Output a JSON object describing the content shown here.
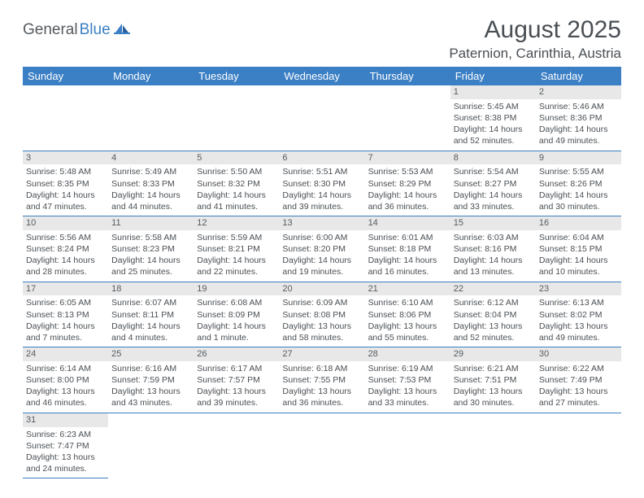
{
  "logo": {
    "part1": "General",
    "part2": "Blue"
  },
  "title": "August 2025",
  "location": "Paternion, Carinthia, Austria",
  "header_bg": "#3b7fc4",
  "weekdays": [
    "Sunday",
    "Monday",
    "Tuesday",
    "Wednesday",
    "Thursday",
    "Friday",
    "Saturday"
  ],
  "weeks": [
    [
      null,
      null,
      null,
      null,
      null,
      {
        "n": "1",
        "sr": "Sunrise: 5:45 AM",
        "ss": "Sunset: 8:38 PM",
        "dl": "Daylight: 14 hours and 52 minutes."
      },
      {
        "n": "2",
        "sr": "Sunrise: 5:46 AM",
        "ss": "Sunset: 8:36 PM",
        "dl": "Daylight: 14 hours and 49 minutes."
      }
    ],
    [
      {
        "n": "3",
        "sr": "Sunrise: 5:48 AM",
        "ss": "Sunset: 8:35 PM",
        "dl": "Daylight: 14 hours and 47 minutes."
      },
      {
        "n": "4",
        "sr": "Sunrise: 5:49 AM",
        "ss": "Sunset: 8:33 PM",
        "dl": "Daylight: 14 hours and 44 minutes."
      },
      {
        "n": "5",
        "sr": "Sunrise: 5:50 AM",
        "ss": "Sunset: 8:32 PM",
        "dl": "Daylight: 14 hours and 41 minutes."
      },
      {
        "n": "6",
        "sr": "Sunrise: 5:51 AM",
        "ss": "Sunset: 8:30 PM",
        "dl": "Daylight: 14 hours and 39 minutes."
      },
      {
        "n": "7",
        "sr": "Sunrise: 5:53 AM",
        "ss": "Sunset: 8:29 PM",
        "dl": "Daylight: 14 hours and 36 minutes."
      },
      {
        "n": "8",
        "sr": "Sunrise: 5:54 AM",
        "ss": "Sunset: 8:27 PM",
        "dl": "Daylight: 14 hours and 33 minutes."
      },
      {
        "n": "9",
        "sr": "Sunrise: 5:55 AM",
        "ss": "Sunset: 8:26 PM",
        "dl": "Daylight: 14 hours and 30 minutes."
      }
    ],
    [
      {
        "n": "10",
        "sr": "Sunrise: 5:56 AM",
        "ss": "Sunset: 8:24 PM",
        "dl": "Daylight: 14 hours and 28 minutes."
      },
      {
        "n": "11",
        "sr": "Sunrise: 5:58 AM",
        "ss": "Sunset: 8:23 PM",
        "dl": "Daylight: 14 hours and 25 minutes."
      },
      {
        "n": "12",
        "sr": "Sunrise: 5:59 AM",
        "ss": "Sunset: 8:21 PM",
        "dl": "Daylight: 14 hours and 22 minutes."
      },
      {
        "n": "13",
        "sr": "Sunrise: 6:00 AM",
        "ss": "Sunset: 8:20 PM",
        "dl": "Daylight: 14 hours and 19 minutes."
      },
      {
        "n": "14",
        "sr": "Sunrise: 6:01 AM",
        "ss": "Sunset: 8:18 PM",
        "dl": "Daylight: 14 hours and 16 minutes."
      },
      {
        "n": "15",
        "sr": "Sunrise: 6:03 AM",
        "ss": "Sunset: 8:16 PM",
        "dl": "Daylight: 14 hours and 13 minutes."
      },
      {
        "n": "16",
        "sr": "Sunrise: 6:04 AM",
        "ss": "Sunset: 8:15 PM",
        "dl": "Daylight: 14 hours and 10 minutes."
      }
    ],
    [
      {
        "n": "17",
        "sr": "Sunrise: 6:05 AM",
        "ss": "Sunset: 8:13 PM",
        "dl": "Daylight: 14 hours and 7 minutes."
      },
      {
        "n": "18",
        "sr": "Sunrise: 6:07 AM",
        "ss": "Sunset: 8:11 PM",
        "dl": "Daylight: 14 hours and 4 minutes."
      },
      {
        "n": "19",
        "sr": "Sunrise: 6:08 AM",
        "ss": "Sunset: 8:09 PM",
        "dl": "Daylight: 14 hours and 1 minute."
      },
      {
        "n": "20",
        "sr": "Sunrise: 6:09 AM",
        "ss": "Sunset: 8:08 PM",
        "dl": "Daylight: 13 hours and 58 minutes."
      },
      {
        "n": "21",
        "sr": "Sunrise: 6:10 AM",
        "ss": "Sunset: 8:06 PM",
        "dl": "Daylight: 13 hours and 55 minutes."
      },
      {
        "n": "22",
        "sr": "Sunrise: 6:12 AM",
        "ss": "Sunset: 8:04 PM",
        "dl": "Daylight: 13 hours and 52 minutes."
      },
      {
        "n": "23",
        "sr": "Sunrise: 6:13 AM",
        "ss": "Sunset: 8:02 PM",
        "dl": "Daylight: 13 hours and 49 minutes."
      }
    ],
    [
      {
        "n": "24",
        "sr": "Sunrise: 6:14 AM",
        "ss": "Sunset: 8:00 PM",
        "dl": "Daylight: 13 hours and 46 minutes."
      },
      {
        "n": "25",
        "sr": "Sunrise: 6:16 AM",
        "ss": "Sunset: 7:59 PM",
        "dl": "Daylight: 13 hours and 43 minutes."
      },
      {
        "n": "26",
        "sr": "Sunrise: 6:17 AM",
        "ss": "Sunset: 7:57 PM",
        "dl": "Daylight: 13 hours and 39 minutes."
      },
      {
        "n": "27",
        "sr": "Sunrise: 6:18 AM",
        "ss": "Sunset: 7:55 PM",
        "dl": "Daylight: 13 hours and 36 minutes."
      },
      {
        "n": "28",
        "sr": "Sunrise: 6:19 AM",
        "ss": "Sunset: 7:53 PM",
        "dl": "Daylight: 13 hours and 33 minutes."
      },
      {
        "n": "29",
        "sr": "Sunrise: 6:21 AM",
        "ss": "Sunset: 7:51 PM",
        "dl": "Daylight: 13 hours and 30 minutes."
      },
      {
        "n": "30",
        "sr": "Sunrise: 6:22 AM",
        "ss": "Sunset: 7:49 PM",
        "dl": "Daylight: 13 hours and 27 minutes."
      }
    ],
    [
      {
        "n": "31",
        "sr": "Sunrise: 6:23 AM",
        "ss": "Sunset: 7:47 PM",
        "dl": "Daylight: 13 hours and 24 minutes."
      },
      null,
      null,
      null,
      null,
      null,
      null
    ]
  ]
}
